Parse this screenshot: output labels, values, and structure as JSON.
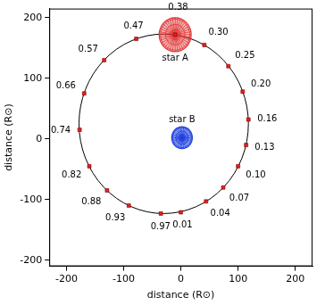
{
  "chart_data": {
    "type": "scatter",
    "x_label": "distance (R⊙)",
    "y_label": "distance (R⊙)",
    "xlim": [
      -230,
      230
    ],
    "ylim": [
      -210,
      215
    ],
    "xticks": [
      -200,
      -100,
      0,
      100,
      200
    ],
    "yticks": [
      -200,
      -100,
      0,
      100,
      200
    ],
    "grid": false,
    "orbit": {
      "center": [
        -30,
        25
      ],
      "radius": 148,
      "color": "#000000"
    },
    "phases": {
      "color": "#e02020",
      "marker": "square",
      "points": [
        {
          "x": 0,
          "y": -121,
          "label": "0.01"
        },
        {
          "x": 44,
          "y": -103,
          "label": "0.04"
        },
        {
          "x": 74,
          "y": -80,
          "label": "0.07"
        },
        {
          "x": 100,
          "y": -45,
          "label": "0.10"
        },
        {
          "x": 114,
          "y": -10,
          "label": "0.13"
        },
        {
          "x": 118,
          "y": 32,
          "label": "0.16"
        },
        {
          "x": 108,
          "y": 78,
          "label": "0.20"
        },
        {
          "x": 83,
          "y": 120,
          "label": "0.25"
        },
        {
          "x": 41,
          "y": 155,
          "label": "0.30"
        },
        {
          "x": -10,
          "y": 172,
          "label": "0.38"
        },
        {
          "x": -78,
          "y": 165,
          "label": "0.47"
        },
        {
          "x": -134,
          "y": 130,
          "label": "0.57"
        },
        {
          "x": -169,
          "y": 75,
          "label": "0.66"
        },
        {
          "x": -177,
          "y": 15,
          "label": "0.74"
        },
        {
          "x": -160,
          "y": -45,
          "label": "0.82"
        },
        {
          "x": -129,
          "y": -85,
          "label": "0.88"
        },
        {
          "x": -91,
          "y": -110,
          "label": "0.93"
        },
        {
          "x": -35,
          "y": -123,
          "label": "0.97"
        }
      ]
    },
    "stars": [
      {
        "name": "star A",
        "x": -10,
        "y": 172,
        "radius": 28,
        "color": "#e03030"
      },
      {
        "name": "star B",
        "x": 2,
        "y": 2,
        "radius": 18,
        "color": "#2040e0"
      }
    ]
  }
}
